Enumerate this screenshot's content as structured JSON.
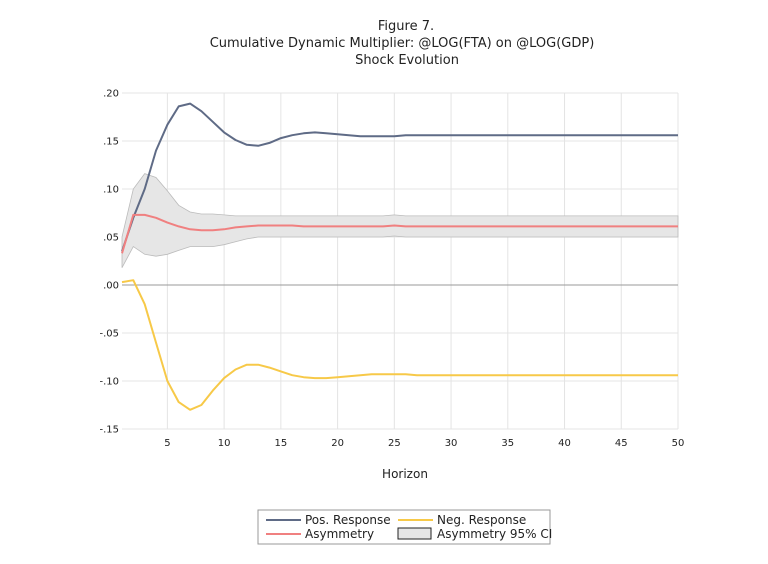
{
  "chart_data": {
    "type": "line",
    "title": "Figure 7.",
    "subtitle": "Cumulative Dynamic Multiplier: @LOG(FTA) on @LOG(GDP)",
    "subtitle2": "Shock Evolution",
    "xlabel": "Horizon",
    "ylabel": "",
    "xlim": [
      1,
      50
    ],
    "ylim": [
      -0.15,
      0.2
    ],
    "x_ticks": [
      5,
      10,
      15,
      20,
      25,
      30,
      35,
      40,
      45,
      50
    ],
    "y_ticks": [
      {
        "value": 0.2,
        "label": ".20"
      },
      {
        "value": 0.15,
        "label": ".15"
      },
      {
        "value": 0.1,
        "label": ".10"
      },
      {
        "value": 0.05,
        "label": ".05"
      },
      {
        "value": 0.0,
        "label": ".00"
      },
      {
        "value": -0.05,
        "label": "-.05"
      },
      {
        "value": -0.1,
        "label": "-.10"
      },
      {
        "value": -0.15,
        "label": "-.15"
      }
    ],
    "grid": true,
    "legend_position": "bottom",
    "x": [
      1,
      2,
      3,
      4,
      5,
      6,
      7,
      8,
      9,
      10,
      11,
      12,
      13,
      14,
      15,
      16,
      17,
      18,
      19,
      20,
      21,
      22,
      23,
      24,
      25,
      26,
      27,
      28,
      29,
      30,
      31,
      32,
      33,
      34,
      35,
      36,
      37,
      38,
      39,
      40,
      41,
      42,
      43,
      44,
      45,
      46,
      47,
      48,
      49,
      50
    ],
    "series": [
      {
        "name": "Pos. Response",
        "color": "#5f6b86",
        "values": [
          0.035,
          0.07,
          0.1,
          0.14,
          0.167,
          0.186,
          0.189,
          0.181,
          0.17,
          0.159,
          0.151,
          0.146,
          0.145,
          0.148,
          0.153,
          0.156,
          0.158,
          0.159,
          0.158,
          0.157,
          0.156,
          0.155,
          0.155,
          0.155,
          0.155,
          0.156,
          0.156,
          0.156,
          0.156,
          0.156,
          0.156,
          0.156,
          0.156,
          0.156,
          0.156,
          0.156,
          0.156,
          0.156,
          0.156,
          0.156,
          0.156,
          0.156,
          0.156,
          0.156,
          0.156,
          0.156,
          0.156,
          0.156,
          0.156,
          0.156
        ]
      },
      {
        "name": "Neg. Response",
        "color": "#f7c948",
        "values": [
          0.003,
          0.005,
          -0.02,
          -0.06,
          -0.1,
          -0.122,
          -0.13,
          -0.125,
          -0.11,
          -0.097,
          -0.088,
          -0.083,
          -0.083,
          -0.086,
          -0.09,
          -0.094,
          -0.096,
          -0.097,
          -0.097,
          -0.096,
          -0.095,
          -0.094,
          -0.093,
          -0.093,
          -0.093,
          -0.093,
          -0.094,
          -0.094,
          -0.094,
          -0.094,
          -0.094,
          -0.094,
          -0.094,
          -0.094,
          -0.094,
          -0.094,
          -0.094,
          -0.094,
          -0.094,
          -0.094,
          -0.094,
          -0.094,
          -0.094,
          -0.094,
          -0.094,
          -0.094,
          -0.094,
          -0.094,
          -0.094,
          -0.094
        ]
      },
      {
        "name": "Asymmetry",
        "color": "#f08080",
        "values": [
          0.033,
          0.073,
          0.073,
          0.07,
          0.065,
          0.061,
          0.058,
          0.057,
          0.057,
          0.058,
          0.06,
          0.061,
          0.062,
          0.062,
          0.062,
          0.062,
          0.061,
          0.061,
          0.061,
          0.061,
          0.061,
          0.061,
          0.061,
          0.061,
          0.062,
          0.061,
          0.061,
          0.061,
          0.061,
          0.061,
          0.061,
          0.061,
          0.061,
          0.061,
          0.061,
          0.061,
          0.061,
          0.061,
          0.061,
          0.061,
          0.061,
          0.061,
          0.061,
          0.061,
          0.061,
          0.061,
          0.061,
          0.061,
          0.061,
          0.061
        ]
      }
    ],
    "band": {
      "name": "Asymmetry 95% CI",
      "fill": "#e6e6e6",
      "stroke": "#bbbbbb",
      "upper": [
        0.05,
        0.1,
        0.116,
        0.112,
        0.098,
        0.083,
        0.076,
        0.074,
        0.074,
        0.073,
        0.072,
        0.072,
        0.072,
        0.072,
        0.072,
        0.072,
        0.072,
        0.072,
        0.072,
        0.072,
        0.072,
        0.072,
        0.072,
        0.072,
        0.073,
        0.072,
        0.072,
        0.072,
        0.072,
        0.072,
        0.072,
        0.072,
        0.072,
        0.072,
        0.072,
        0.072,
        0.072,
        0.072,
        0.072,
        0.072,
        0.072,
        0.072,
        0.072,
        0.072,
        0.072,
        0.072,
        0.072,
        0.072,
        0.072,
        0.072
      ],
      "lower": [
        0.018,
        0.04,
        0.032,
        0.03,
        0.032,
        0.036,
        0.04,
        0.04,
        0.04,
        0.042,
        0.045,
        0.048,
        0.05,
        0.05,
        0.05,
        0.05,
        0.05,
        0.05,
        0.05,
        0.05,
        0.05,
        0.05,
        0.05,
        0.05,
        0.051,
        0.05,
        0.05,
        0.05,
        0.05,
        0.05,
        0.05,
        0.05,
        0.05,
        0.05,
        0.05,
        0.05,
        0.05,
        0.05,
        0.05,
        0.05,
        0.05,
        0.05,
        0.05,
        0.05,
        0.05,
        0.05,
        0.05,
        0.05,
        0.05,
        0.05
      ]
    }
  }
}
